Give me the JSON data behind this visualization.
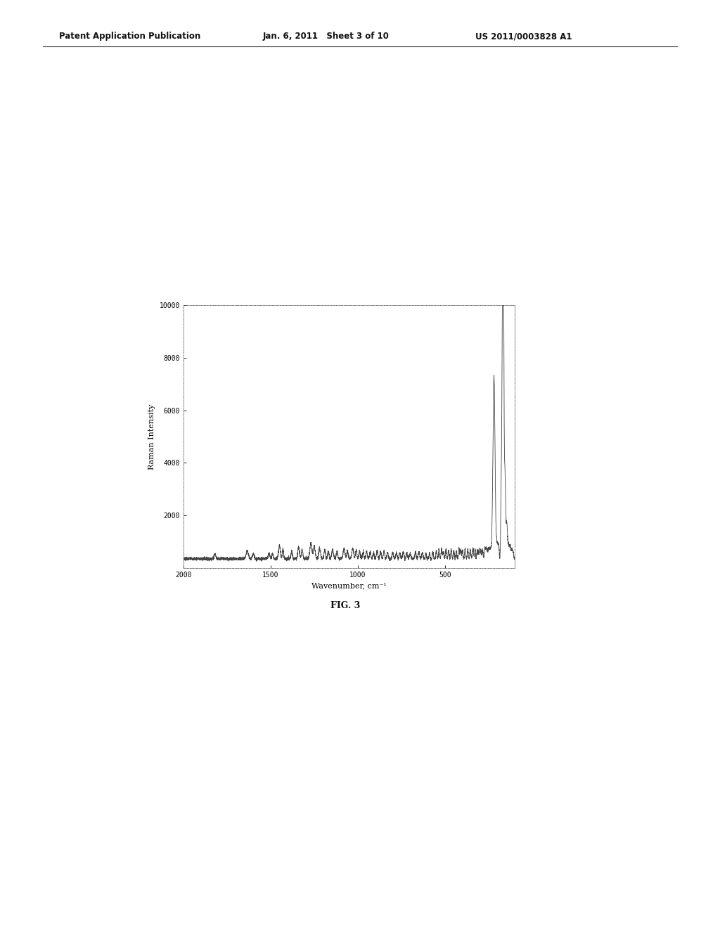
{
  "header_left": "Patent Application Publication",
  "header_mid": "Jan. 6, 2011   Sheet 3 of 10",
  "header_right": "US 2011/0003828 A1",
  "xlabel": "Wavenumber, cm⁻¹",
  "ylabel": "Raman Intensity",
  "fig_label": "FIG. 3",
  "xlim": [
    2000,
    100
  ],
  "ylim": [
    0,
    10000
  ],
  "yticks": [
    2000,
    4000,
    6000,
    8000,
    10000
  ],
  "xticks": [
    2000,
    1500,
    1000,
    500
  ],
  "background_color": "#ffffff",
  "line_color": "#444444",
  "line_width": 0.6,
  "font_color": "#333333"
}
